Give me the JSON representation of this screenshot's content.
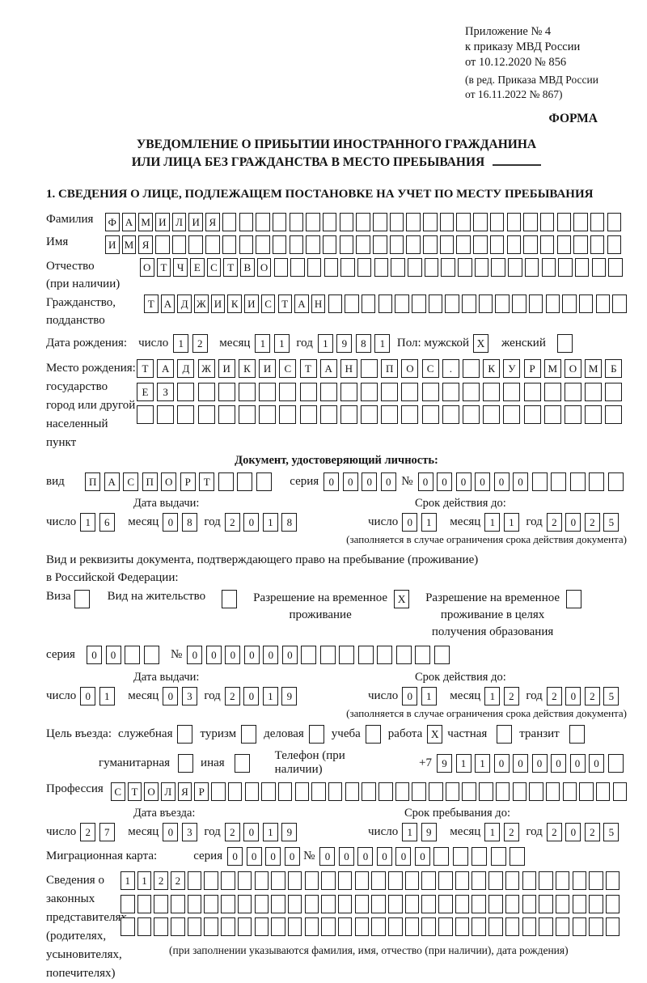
{
  "header": {
    "lines": [
      "Приложение № 4",
      "к приказу МВД России",
      "от 10.12.2020 № 856"
    ],
    "amendment_lines": [
      "(в ред. Приказа МВД России",
      "от 16.11.2022 № 867)"
    ],
    "forma": "ФОРМА"
  },
  "title": {
    "line1": "УВЕДОМЛЕНИЕ О ПРИБЫТИИ ИНОСТРАННОГО ГРАЖДАНИНА",
    "line2": "ИЛИ ЛИЦА БЕЗ ГРАЖДАНСТВА В МЕСТО ПРЕБЫВАНИЯ"
  },
  "section1": {
    "heading": "1. СВЕДЕНИЯ О ЛИЦЕ, ПОДЛЕЖАЩЕМ ПОСТАНОВКЕ НА УЧЕТ ПО МЕСТУ ПРЕБЫВАНИЯ"
  },
  "surname": {
    "label": "Фамилия",
    "cells": {
      "chars": "ФАМИЛИЯ",
      "count": 31
    }
  },
  "firstname": {
    "label": "Имя",
    "cells": {
      "chars": "ИМЯ",
      "count": 31
    }
  },
  "patronymic": {
    "label": "Отчество",
    "label2": "(при наличии)",
    "cells": {
      "chars": "ОТЧЕСТВО",
      "count": 29
    }
  },
  "citizenship": {
    "label": "Гражданство,",
    "label2": "подданство",
    "cells": {
      "chars": "ТАДЖИКИСТАН",
      "count": 29
    }
  },
  "birth_date": {
    "label": "Дата рождения:",
    "day_label": "число",
    "day": {
      "chars": "12",
      "count": 2
    },
    "month_label": "месяц",
    "month": {
      "chars": "11",
      "count": 2
    },
    "year_label": "год",
    "year": {
      "chars": "1981",
      "count": 4
    },
    "sex_male_label": "Пол: мужской",
    "sex_male": "X",
    "sex_female_label": "женский",
    "sex_female": ""
  },
  "birth_place": {
    "label_lines": [
      "Место рождения:",
      "государство",
      "город или другой",
      "населенный пункт"
    ],
    "row1": {
      "chars": "ТАДЖИКИСТАН ПОС. КУРМОМБ",
      "count": 24
    },
    "row2": {
      "chars": "ЕЗ",
      "count": 24
    },
    "row3": {
      "chars": "",
      "count": 24
    }
  },
  "identity_doc": {
    "heading": "Документ, удостоверяющий личность:",
    "kind_label": "вид",
    "kind": {
      "chars": "ПАСПОРТ",
      "count": 10
    },
    "series_label": "серия",
    "series": {
      "chars": "0000",
      "count": 4
    },
    "number_label": "№",
    "number": {
      "chars": "000000",
      "count": 11
    },
    "issue": {
      "heading": "Дата выдачи:",
      "day_label": "число",
      "day": {
        "chars": "16",
        "count": 2
      },
      "month_label": "месяц",
      "month": {
        "chars": "08",
        "count": 2
      },
      "year_label": "год",
      "year": {
        "chars": "2018",
        "count": 4
      }
    },
    "valid": {
      "heading": "Срок действия до:",
      "day_label": "число",
      "day": {
        "chars": "01",
        "count": 2
      },
      "month_label": "месяц",
      "month": {
        "chars": "11",
        "count": 2
      },
      "year_label": "год",
      "year": {
        "chars": "2025",
        "count": 4
      }
    },
    "note": "(заполняется в случае ограничения срока действия документа)"
  },
  "residence_doc": {
    "intro1": "Вид и реквизиты документа, подтверждающего право на пребывание (проживание)",
    "intro2": "в Российской Федерации:",
    "visa": {
      "label": "Виза",
      "checked": ""
    },
    "residence_permit": {
      "label": "Вид на жительство",
      "checked": ""
    },
    "temp_permit": {
      "line1": "Разрешение на временное",
      "line2": "проживание",
      "checked": "X"
    },
    "edu_permit": {
      "line1": "Разрешение на временное",
      "line2": "проживание в целях",
      "line3": "получения образования",
      "checked": ""
    },
    "series_label": "серия",
    "series": {
      "chars": "00",
      "count": 4
    },
    "number_label": "№",
    "number": {
      "chars": "000000",
      "count": 14
    },
    "issue": {
      "heading": "Дата выдачи:",
      "day_label": "число",
      "day": {
        "chars": "01",
        "count": 2
      },
      "month_label": "месяц",
      "month": {
        "chars": "03",
        "count": 2
      },
      "year_label": "год",
      "year": {
        "chars": "2019",
        "count": 4
      }
    },
    "valid": {
      "heading": "Срок действия до:",
      "day_label": "число",
      "day": {
        "chars": "01",
        "count": 2
      },
      "month_label": "месяц",
      "month": {
        "chars": "12",
        "count": 2
      },
      "year_label": "год",
      "year": {
        "chars": "2025",
        "count": 4
      }
    },
    "note": "(заполняется в случае ограничения срока действия документа)"
  },
  "purpose": {
    "label": "Цель въезда:",
    "options": [
      {
        "label": "служебная",
        "checked": ""
      },
      {
        "label": "туризм",
        "checked": ""
      },
      {
        "label": "деловая",
        "checked": ""
      },
      {
        "label": "учеба",
        "checked": ""
      },
      {
        "label": "работа",
        "checked": "X"
      },
      {
        "label": "частная",
        "checked": ""
      },
      {
        "label": "транзит",
        "checked": ""
      }
    ],
    "option_humanitarian": {
      "label": "гуманитарная",
      "checked": ""
    },
    "option_other": {
      "label": "иная",
      "checked": ""
    },
    "phone_label": "Телефон (при наличии)",
    "phone_prefix": "+7",
    "phone": {
      "chars": "911000000",
      "count": 10
    }
  },
  "profession": {
    "label": "Профессия",
    "cells": {
      "chars": "СТОЛЯР",
      "count": 31
    }
  },
  "entry": {
    "issue": {
      "heading": "Дата въезда:",
      "day_label": "число",
      "day": {
        "chars": "27",
        "count": 2
      },
      "month_label": "месяц",
      "month": {
        "chars": "03",
        "count": 2
      },
      "year_label": "год",
      "year": {
        "chars": "2019",
        "count": 4
      }
    },
    "valid": {
      "heading": "Срок пребывания до:",
      "day_label": "число",
      "day": {
        "chars": "19",
        "count": 2
      },
      "month_label": "месяц",
      "month": {
        "chars": "12",
        "count": 2
      },
      "year_label": "год",
      "year": {
        "chars": "2025",
        "count": 4
      }
    }
  },
  "migration_card": {
    "label": "Миграционная карта:",
    "series_label": "серия",
    "series": {
      "chars": "0000",
      "count": 4
    },
    "number_label": "№",
    "number": {
      "chars": "000000",
      "count": 11
    }
  },
  "representatives": {
    "label_lines": [
      "Сведения о",
      "законных",
      "представителях",
      "(родителях,",
      "усыновителях,",
      "попечителях)"
    ],
    "row1": {
      "chars": "1122",
      "count": 30
    },
    "row2": {
      "chars": "",
      "count": 30
    },
    "row3": {
      "chars": "",
      "count": 30
    },
    "note": "(при заполнении указываются фамилия, имя, отчество (при наличии), дата рождения)"
  }
}
